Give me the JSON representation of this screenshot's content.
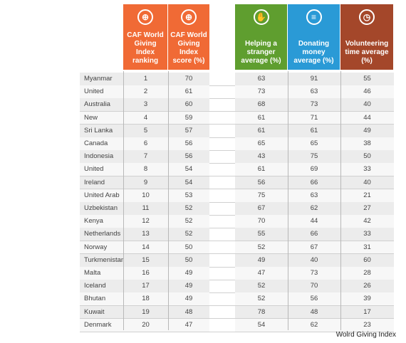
{
  "headers": [
    {
      "label": "CAF World Giving Index ranking",
      "color": "#f06a35",
      "icon": "globe-icon",
      "glyph": "⊕"
    },
    {
      "label": "CAF World Giving Index score (%)",
      "color": "#f06a35",
      "icon": "globe-icon",
      "glyph": "⊕"
    },
    {
      "label": "Helping a stranger average (%)",
      "color": "#5f9e2f",
      "icon": "hand-icon",
      "glyph": "✋"
    },
    {
      "label": "Donating money average (%)",
      "color": "#2a9ad6",
      "icon": "coins-icon",
      "glyph": "≡"
    },
    {
      "label": "Volunteering time average (%)",
      "color": "#a4472a",
      "icon": "clock-icon",
      "glyph": "◷"
    }
  ],
  "source": "Wolrd Giving Index",
  "chart_data": {
    "type": "table",
    "columns": [
      "",
      "CAF World Giving Index ranking",
      "CAF World Giving Index score (%)",
      "Helping a stranger average (%)",
      "Donating money average (%)",
      "Volunteering time average (%)"
    ],
    "rows": [
      [
        "Myanmar",
        "1",
        "70",
        "63",
        "91",
        "55"
      ],
      [
        "United States of America",
        "2",
        "61",
        "73",
        "63",
        "46"
      ],
      [
        "Australia",
        "3",
        "60",
        "68",
        "73",
        "40"
      ],
      [
        "New Zealand",
        "4",
        "59",
        "61",
        "71",
        "44"
      ],
      [
        "Sri Lanka",
        "5",
        "57",
        "61",
        "61",
        "49"
      ],
      [
        "Canada",
        "6",
        "56",
        "65",
        "65",
        "38"
      ],
      [
        "Indonesia",
        "7",
        "56",
        "43",
        "75",
        "50"
      ],
      [
        "United Kingdom",
        "8",
        "54",
        "61",
        "69",
        "33"
      ],
      [
        "Ireland",
        "9",
        "54",
        "56",
        "66",
        "40"
      ],
      [
        "United Arab Emirates",
        "10",
        "53",
        "75",
        "63",
        "21"
      ],
      [
        "Uzbekistan",
        "11",
        "52",
        "67",
        "62",
        "27"
      ],
      [
        "Kenya",
        "12",
        "52",
        "70",
        "44",
        "42"
      ],
      [
        "Netherlands",
        "13",
        "52",
        "55",
        "66",
        "33"
      ],
      [
        "Norway",
        "14",
        "50",
        "52",
        "67",
        "31"
      ],
      [
        "Turkmenistan",
        "15",
        "50",
        "49",
        "40",
        "60"
      ],
      [
        "Malta",
        "16",
        "49",
        "47",
        "73",
        "28"
      ],
      [
        "Iceland",
        "17",
        "49",
        "52",
        "70",
        "26"
      ],
      [
        "Bhutan",
        "18",
        "49",
        "52",
        "56",
        "39"
      ],
      [
        "Kuwait",
        "19",
        "48",
        "78",
        "48",
        "17"
      ],
      [
        "Denmark",
        "20",
        "47",
        "54",
        "62",
        "23"
      ]
    ]
  }
}
